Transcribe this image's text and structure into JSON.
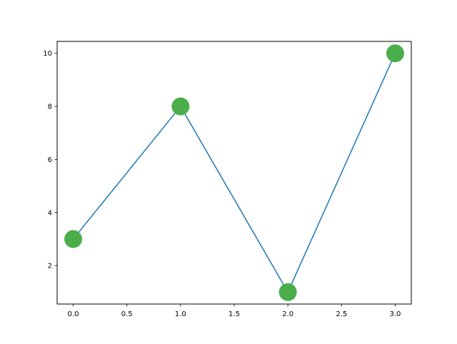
{
  "chart_data": {
    "type": "line",
    "title": "",
    "xlabel": "",
    "ylabel": "",
    "x": [
      0,
      1,
      2,
      3
    ],
    "series": [
      {
        "values": [
          3,
          8,
          1,
          10
        ]
      }
    ],
    "xlim": [
      -0.15,
      3.15
    ],
    "ylim": [
      0.55,
      10.45
    ],
    "xticks": [
      0.0,
      0.5,
      1.0,
      1.5,
      2.0,
      2.5,
      3.0
    ],
    "xtick_labels": [
      "0.0",
      "0.5",
      "1.0",
      "1.5",
      "2.0",
      "2.5",
      "3.0"
    ],
    "yticks": [
      2,
      4,
      6,
      8,
      10
    ],
    "ytick_labels": [
      "2",
      "4",
      "6",
      "8",
      "10"
    ],
    "grid": false,
    "line_color": "#1f77b4",
    "marker_color": "#4aae4a",
    "marker": "circle"
  }
}
